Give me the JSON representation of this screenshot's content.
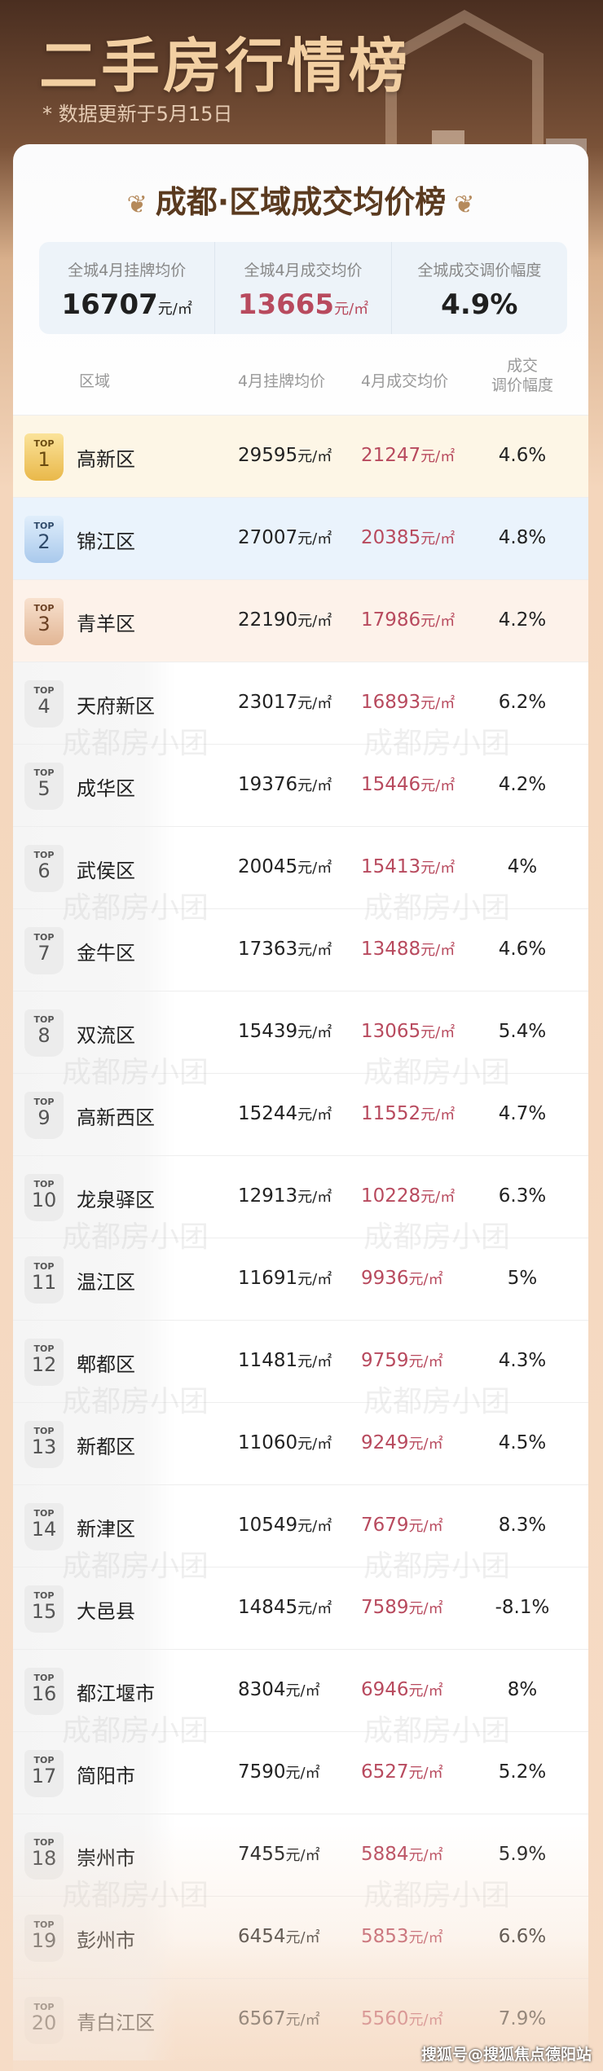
{
  "header": {
    "title": "二手房行情榜",
    "update_note": "* 数据更新于5月15日"
  },
  "card": {
    "heading": "成都·区域成交均价榜"
  },
  "summary": [
    {
      "label": "全城4月挂牌均价",
      "value": "16707",
      "unit": "元/㎡"
    },
    {
      "label": "全城4月成交均价",
      "value": "13665",
      "unit": "元/㎡"
    },
    {
      "label": "全城成交调价幅度",
      "value": "4.9%",
      "unit": ""
    }
  ],
  "columns": {
    "region": "区域",
    "listing": "4月挂牌均价",
    "deal": "4月成交均价",
    "change": "成交\n调价幅度"
  },
  "unit": "元/㎡",
  "badge_prefix": "TOP",
  "rows": [
    {
      "rank": "1",
      "name": "高新区",
      "listing": "29595",
      "deal": "21247",
      "change": "4.6%"
    },
    {
      "rank": "2",
      "name": "锦江区",
      "listing": "27007",
      "deal": "20385",
      "change": "4.8%"
    },
    {
      "rank": "3",
      "name": "青羊区",
      "listing": "22190",
      "deal": "17986",
      "change": "4.2%"
    },
    {
      "rank": "4",
      "name": "天府新区",
      "listing": "23017",
      "deal": "16893",
      "change": "6.2%"
    },
    {
      "rank": "5",
      "name": "成华区",
      "listing": "19376",
      "deal": "15446",
      "change": "4.2%"
    },
    {
      "rank": "6",
      "name": "武侯区",
      "listing": "20045",
      "deal": "15413",
      "change": "4%"
    },
    {
      "rank": "7",
      "name": "金牛区",
      "listing": "17363",
      "deal": "13488",
      "change": "4.6%"
    },
    {
      "rank": "8",
      "name": "双流区",
      "listing": "15439",
      "deal": "13065",
      "change": "5.4%"
    },
    {
      "rank": "9",
      "name": "高新西区",
      "listing": "15244",
      "deal": "11552",
      "change": "4.7%"
    },
    {
      "rank": "10",
      "name": "龙泉驿区",
      "listing": "12913",
      "deal": "10228",
      "change": "6.3%"
    },
    {
      "rank": "11",
      "name": "温江区",
      "listing": "11691",
      "deal": "9936",
      "change": "5%"
    },
    {
      "rank": "12",
      "name": "郫都区",
      "listing": "11481",
      "deal": "9759",
      "change": "4.3%"
    },
    {
      "rank": "13",
      "name": "新都区",
      "listing": "11060",
      "deal": "9249",
      "change": "4.5%"
    },
    {
      "rank": "14",
      "name": "新津区",
      "listing": "10549",
      "deal": "7679",
      "change": "8.3%"
    },
    {
      "rank": "15",
      "name": "大邑县",
      "listing": "14845",
      "deal": "7589",
      "change": "-8.1%"
    },
    {
      "rank": "16",
      "name": "都江堰市",
      "listing": "8304",
      "deal": "6946",
      "change": "8%"
    },
    {
      "rank": "17",
      "name": "简阳市",
      "listing": "7590",
      "deal": "6527",
      "change": "5.2%"
    },
    {
      "rank": "18",
      "name": "崇州市",
      "listing": "7455",
      "deal": "5884",
      "change": "5.9%"
    },
    {
      "rank": "19",
      "name": "彭州市",
      "listing": "6454",
      "deal": "5853",
      "change": "6.6%"
    },
    {
      "rank": "20",
      "name": "青白江区",
      "listing": "6567",
      "deal": "5560",
      "change": "7.9%"
    }
  ],
  "watermark": "成都房小团",
  "credit": "搜狐号@搜狐焦点德阳站",
  "colors": {
    "deal_price": "#b84a5e",
    "title": "#f2cfa2",
    "heading": "#5a3a1f"
  }
}
